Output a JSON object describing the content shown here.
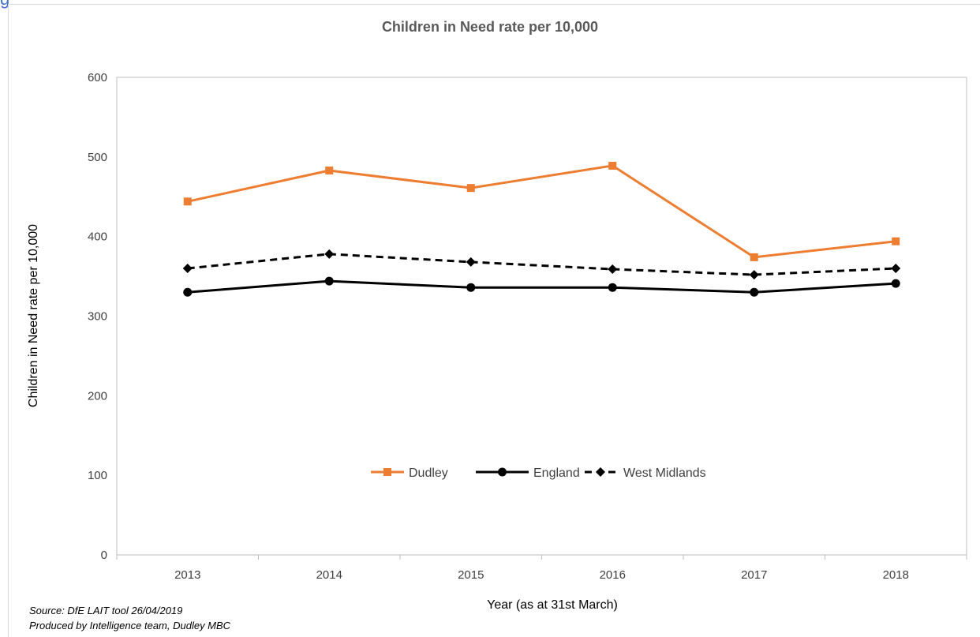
{
  "chart_data": {
    "type": "line",
    "title": "Children in Need rate per 10,000",
    "xlabel": "Year (as at 31st March)",
    "ylabel": "Children in Need rate per 10,000",
    "categories": [
      "2013",
      "2014",
      "2015",
      "2016",
      "2017",
      "2018"
    ],
    "ylim": [
      0,
      600
    ],
    "yticks": [
      0,
      100,
      200,
      300,
      400,
      500,
      600
    ],
    "grid": false,
    "legend_position": "inside-bottom-center",
    "series": [
      {
        "name": "Dudley",
        "values": [
          444,
          483,
          461,
          489,
          374,
          394
        ],
        "color": "#ed7d31",
        "line_style": "solid",
        "marker": "square"
      },
      {
        "name": "England",
        "values": [
          330,
          344,
          336,
          336,
          330,
          341
        ],
        "color": "#000000",
        "line_style": "solid",
        "marker": "circle"
      },
      {
        "name": "West Midlands",
        "values": [
          360,
          378,
          368,
          359,
          352,
          360
        ],
        "color": "#000000",
        "line_style": "dashed",
        "marker": "diamond"
      }
    ]
  },
  "footnotes": {
    "source": "Source: DfE LAIT tool 26/04/2019",
    "produced_by": "Produced by Intelligence team, Dudley MBC"
  }
}
